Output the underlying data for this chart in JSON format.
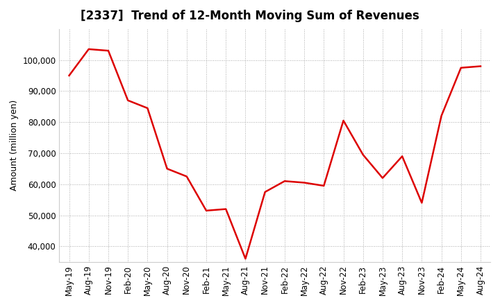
{
  "title": "[2337]  Trend of 12-Month Moving Sum of Revenues",
  "ylabel": "Amount (million yen)",
  "line_color": "#dd0000",
  "background_color": "#ffffff",
  "grid_color": "#aaaaaa",
  "ylim": [
    35000,
    110000
  ],
  "yticks": [
    40000,
    50000,
    60000,
    70000,
    80000,
    90000,
    100000
  ],
  "labels": [
    "May-19",
    "Aug-19",
    "Nov-19",
    "Feb-20",
    "May-20",
    "Aug-20",
    "Nov-20",
    "Feb-21",
    "May-21",
    "Aug-21",
    "Nov-21",
    "Feb-22",
    "May-22",
    "Aug-22",
    "Nov-22",
    "Feb-23",
    "May-23",
    "Aug-23",
    "Nov-23",
    "Feb-24",
    "May-24",
    "Aug-24"
  ],
  "values": [
    95000,
    103500,
    103000,
    87000,
    84500,
    65000,
    62500,
    51500,
    52000,
    36000,
    57500,
    61000,
    60500,
    59500,
    80500,
    69500,
    62000,
    69000,
    54000,
    82000,
    97500,
    98000
  ]
}
